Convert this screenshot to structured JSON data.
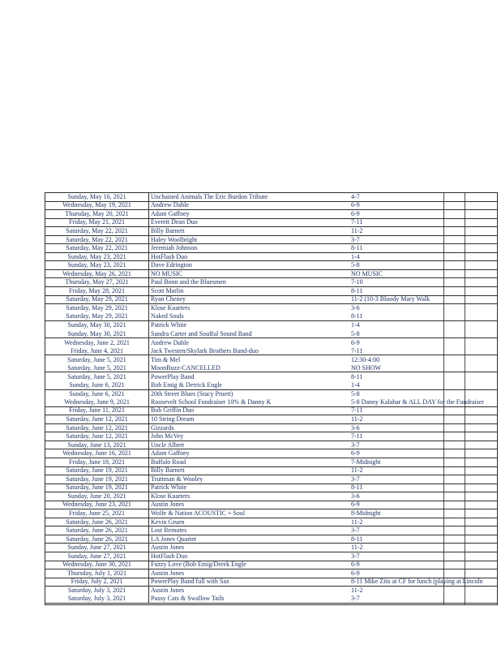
{
  "page": {
    "background": "#ffffff"
  },
  "table": {
    "text_color": "#203263",
    "border_color": "#2e2e2e",
    "columns": [
      "date",
      "performer",
      "time"
    ],
    "rows": [
      {
        "date": "Sunday, May 16, 2021",
        "performer": "Unchained Animals The Eric Burdon Tribute",
        "time": "4-7",
        "divider": true
      },
      {
        "date": "Wednesday, May 19, 2021",
        "performer": "Andrew Dahle",
        "time": "6-9",
        "divider": true
      },
      {
        "date": "Thursday, May 20, 2021",
        "performer": "Adam Gaffney",
        "time": "6-9",
        "divider": true
      },
      {
        "date": "Friday, May 21, 2021",
        "performer": "Everett Dean Duo",
        "time": "7-11",
        "divider": true
      },
      {
        "date": "Saturday, May 22, 2021",
        "performer": "Billy Barnett",
        "time": "11-2",
        "divider": true
      },
      {
        "date": "Saturday, May 22, 2021",
        "performer": "Haley Woolbright",
        "time": "3-7",
        "divider": true
      },
      {
        "date": "Saturday, May 22, 2021",
        "performer": "Jeremiah Johnson",
        "time": "8-11",
        "divider": true
      },
      {
        "date": "Sunday, May 23, 2021",
        "performer": "HotFlash Duo",
        "time": "1-4",
        "divider": true
      },
      {
        "date": "Sunday, May 23, 2021",
        "performer": "Dave Edrington",
        "time": "5-8",
        "divider": true
      },
      {
        "date": "Wednesday, May 26, 2021",
        "performer": "NO MUSIC",
        "time": "NO MUSIC",
        "divider": true
      },
      {
        "date": "Thursday, May 27, 2021",
        "performer": "Paul Bonn and the Bluesmen",
        "time": "7-10",
        "divider": true
      },
      {
        "date": "Friday, May 28, 2021",
        "performer": "Scott Marlin",
        "time": "8-11",
        "divider": true
      },
      {
        "date": "Saturday, May 29, 2021",
        "performer": "Ryan Cheney",
        "time": "11-2 (10-3 Bloody Mary Walk",
        "divider": true
      },
      {
        "date": "Saturday, May 29, 2021",
        "performer": "Klose Kuarters",
        "time": "3-6",
        "divider": false
      },
      {
        "date": "Saturday, May 29, 2021",
        "performer": "Naked Souls",
        "time": "8-11",
        "divider": true
      },
      {
        "date": "Sunday, May 30, 2021",
        "performer": "Patrick White",
        "time": "1-4",
        "divider": false
      },
      {
        "date": "Sunday, May 30, 2021",
        "performer": "Sandra Carter and Soulful Sound Band",
        "time": "5-8",
        "divider": true
      },
      {
        "date": "Wednesday, June 2, 2021",
        "performer": "Andrew Dahle",
        "time": "6-9",
        "divider": false
      },
      {
        "date": "Friday, June 4, 2021",
        "performer": "Jack Twesten/Skylark Brothers Band-duo",
        "time": "7-11",
        "divider": true
      },
      {
        "date": "Saturday, June 5, 2021",
        "performer": "Tim & Mel",
        "time": "12:30-4:00",
        "divider": false
      },
      {
        "date": "Saturday, June 5, 2021",
        "performer": "MoonBuzz-CANCELLED",
        "time": "NO SHOW",
        "divider": true
      },
      {
        "date": "Saturday, June 5, 2021",
        "performer": "PowerPlay Band",
        "time": "8-11",
        "divider": false
      },
      {
        "date": "Sunday, June 6, 2021",
        "performer": "Bob Emig & Derrick Engle",
        "time": "1-4",
        "divider": true
      },
      {
        "date": "Sunday, June 6, 2021",
        "performer": "20th Street Blues (Stacy Pruett)",
        "time": "5-8",
        "divider": false
      },
      {
        "date": "Wednesday, June 9, 2021",
        "performer": "Roosevelt School Fundraiser 10% & Danny K",
        "time": "5-8 Danny Kalahar & ALL DAY for the Fundraiser",
        "divider": true
      },
      {
        "date": "Friday, June 11, 2021",
        "performer": "Bob Griffin Duo",
        "time": "7-11",
        "divider": true
      },
      {
        "date": "Saturday, June 12, 2021",
        "performer": "10 String Dream",
        "time": "11-2",
        "divider": true
      },
      {
        "date": "Saturday, June 12, 2021",
        "performer": "Gizzards",
        "time": "3-6",
        "divider": true
      },
      {
        "date": "Saturday, June 12, 2021",
        "performer": "John McVey",
        "time": "7-11",
        "divider": true
      },
      {
        "date": "Sunday, June 13, 2021",
        "performer": "Uncle Albert",
        "time": "3-7",
        "divider": true
      },
      {
        "date": "Wednesday, June 16, 2021",
        "performer": "Adam Gaffney",
        "time": "6-9",
        "divider": true
      },
      {
        "date": "Friday, June 18, 2021",
        "performer": "Buffalo Road",
        "time": "7-Midnight",
        "divider": true
      },
      {
        "date": "Saturday, June 19, 2021",
        "performer": "Billy Barnett",
        "time": "11-2",
        "divider": true
      },
      {
        "date": "Saturday, June 19, 2021",
        "performer": "Truttman & Wooley",
        "time": "3-7",
        "divider": true
      },
      {
        "date": "Saturday, June 19, 2021",
        "performer": "Patrick White",
        "time": "8-11",
        "divider": true
      },
      {
        "date": "Sunday, June 20, 2021",
        "performer": "Klose Kuarters",
        "time": "3-6",
        "divider": true
      },
      {
        "date": "Wednesday, June 23, 2021",
        "performer": "Austin Jones",
        "time": "6-9",
        "divider": true
      },
      {
        "date": "Friday, June 25, 2021",
        "performer": "Wolfe & Nation ACOUSTIC + Soul",
        "time": "8-Midnight",
        "divider": true
      },
      {
        "date": "Saturday, June 26, 2021",
        "performer": "Kevin Gruen",
        "time": "11-2",
        "divider": true
      },
      {
        "date": "Saturday, June 26, 2021",
        "performer": "Lost Remotes",
        "time": "3-7",
        "divider": true
      },
      {
        "date": "Saturday, June 26, 2021",
        "performer": "LA Jones Quartet",
        "time": "8-11",
        "divider": true
      },
      {
        "date": "Sunday, June 27, 2021",
        "performer": "Austin Jones",
        "time": "11-2",
        "divider": true
      },
      {
        "date": "Sunday, June 27, 2021",
        "performer": "HotFlash Duo",
        "time": "3-7",
        "divider": true
      },
      {
        "date": "Wednesday, June 30, 2021",
        "performer": "Fuzzy Love (Bob Emig/Derek Engle",
        "time": "6-9",
        "divider": true
      },
      {
        "date": "Thursday, July 1, 2021",
        "performer": "Austin Jones",
        "time": "6-9",
        "divider": true
      },
      {
        "date": "Friday, July 2, 2021",
        "performer": "PowerPlay Band full with Sax",
        "time": "8-11 Mike Zito at CF for lunch (playing at Lincoln",
        "divider": true
      },
      {
        "date": "Saturday, July 3, 2021",
        "performer": "Austin Jones",
        "time": "11-2",
        "divider": false
      },
      {
        "date": "Saturday, July 3, 2021",
        "performer": "Pussy Cats & Swallow Tails",
        "time": "3-7",
        "divider": true
      }
    ]
  }
}
